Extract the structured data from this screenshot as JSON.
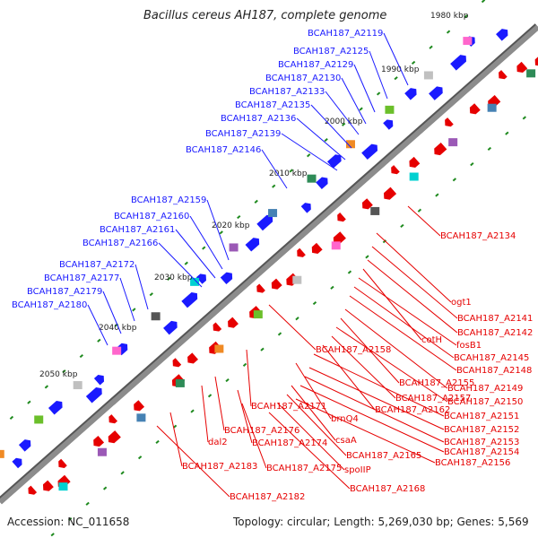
{
  "title": "Bacillus cereus AH187, complete genome",
  "footer": {
    "accession": "Accession: NC_011658",
    "summary": "Topology: circular; Length: 5,269,030 bp; Genes: 5,569"
  },
  "colors": {
    "forward": "#1a1aff",
    "reverse": "#e60000",
    "backbone": "#8c8c8c",
    "tick": "#1f8a1f"
  },
  "kbp_ticks": [
    "1980 kbp",
    "1990 kbp",
    "2000 kbp",
    "2010 kbp",
    "2020 kbp",
    "2030 kbp",
    "2040 kbp",
    "2050 kbp"
  ],
  "blue_labels": [
    "BCAH187_A2119",
    "BCAH187_A2125",
    "BCAH187_A2129",
    "BCAH187_A2130",
    "BCAH187_A2133",
    "BCAH187_A2135",
    "BCAH187_A2136",
    "BCAH187_A2139",
    "BCAH187_A2146",
    "BCAH187_A2159",
    "BCAH187_A2160",
    "BCAH187_A2161",
    "BCAH187_A2166",
    "BCAH187_A2172",
    "BCAH187_A2177",
    "BCAH187_A2179",
    "BCAH187_A2180"
  ],
  "red_labels": [
    "BCAH187_A2134",
    "ogt1",
    "BCAH187_A2141",
    "BCAH187_A2142",
    "cotH",
    "fosB1",
    "BCAH187_A2145",
    "BCAH187_A2158",
    "BCAH187_A2148",
    "BCAH187_A2149",
    "BCAH187_A2155",
    "BCAH187_A2150",
    "BCAH187_A2157",
    "BCAH187_A2162",
    "BCAH187_A2151",
    "BCAH187_A2171",
    "brnQ4",
    "BCAH187_A2152",
    "BCAH187_A2176",
    "BCAH187_A2153",
    "dal2",
    "BCAH187_A2174",
    "csaA",
    "BCAH187_A2154",
    "BCAH187_A2165",
    "BCAH187_A2156",
    "BCAH187_A2183",
    "BCAH187_A2175",
    "spoIIP",
    "BCAH187_A2168",
    "BCAH187_A2182"
  ]
}
